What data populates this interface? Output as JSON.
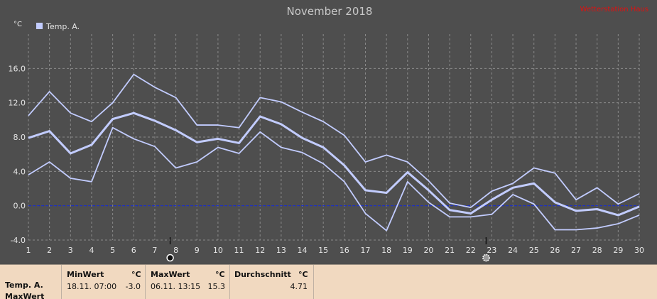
{
  "chart_data": {
    "type": "line",
    "title": "November 2018",
    "watermark": "Wetterstation Haus",
    "ylabel": "°C",
    "legend": "Temp. A.",
    "x": [
      1,
      2,
      3,
      4,
      5,
      6,
      7,
      8,
      9,
      10,
      11,
      12,
      13,
      14,
      15,
      16,
      17,
      18,
      19,
      20,
      21,
      22,
      23,
      24,
      25,
      26,
      27,
      28,
      29,
      30
    ],
    "xlim": [
      1,
      30
    ],
    "ylim": [
      -4,
      20
    ],
    "yticks": [
      "16.0",
      "12.0",
      "8.0",
      "4.0",
      "0.0",
      "-4.0"
    ],
    "grid": true,
    "series": [
      {
        "values": [
          10.5,
          13.3,
          10.8,
          9.8,
          12.0,
          15.3,
          13.8,
          12.6,
          9.4,
          9.4,
          9.1,
          12.6,
          12.1,
          10.9,
          9.8,
          8.2,
          5.1,
          5.9,
          5.1,
          2.9,
          0.3,
          -0.2,
          1.7,
          2.6,
          4.4,
          3.8,
          0.7,
          2.1,
          0.2,
          1.4
        ]
      },
      {
        "values": [
          7.9,
          8.7,
          6.1,
          7.1,
          10.1,
          10.8,
          9.9,
          8.8,
          7.4,
          7.8,
          7.3,
          10.4,
          9.5,
          7.9,
          6.8,
          4.7,
          1.8,
          1.5,
          3.9,
          1.8,
          -0.5,
          -0.9,
          0.7,
          2.1,
          2.6,
          0.4,
          -0.6,
          -0.4,
          -1.1,
          -0.1
        ]
      },
      {
        "values": [
          3.6,
          5.1,
          3.2,
          2.8,
          9.1,
          7.8,
          6.9,
          4.4,
          5.1,
          6.8,
          6.1,
          8.6,
          6.8,
          6.2,
          4.9,
          2.8,
          -0.9,
          -2.9,
          2.8,
          0.4,
          -1.3,
          -1.3,
          -1.0,
          1.3,
          0.2,
          -2.8,
          -2.8,
          -2.6,
          -2.1,
          -1.1
        ]
      }
    ],
    "zero_line": 0,
    "moon_phases": [
      {
        "day": 8,
        "phase": "full-moon"
      },
      {
        "day": 23,
        "phase": "new-moon"
      }
    ],
    "colors": {
      "line": "#c2ccff",
      "zero_line": "#1428c8",
      "background": "#4e4e4e",
      "grid": "#8a8a8a",
      "title": "#c8c8c8",
      "watermark": "#e01010"
    }
  },
  "info": {
    "row_label": "Temp. A.",
    "row_label2": "MaxWert",
    "min_header": "MinWert",
    "min_unit": "°C",
    "min_time": "18.11.  07:00",
    "min_value": "-3.0",
    "max_header": "MaxWert",
    "max_unit": "°C",
    "max_time": "06.11.  13:15",
    "max_value": "15.3",
    "avg_header": "Durchschnitt",
    "avg_unit": "°C",
    "avg_value": "4.71"
  }
}
